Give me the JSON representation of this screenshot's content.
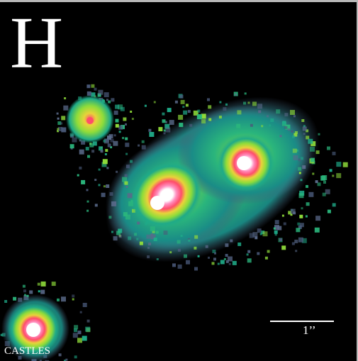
{
  "image": {
    "filter_label": "H",
    "scale_bar_label": "1’’",
    "credit": "CASTLES",
    "colors": {
      "background": "#000000",
      "halo": "#4a5a7a",
      "outer": "#1faa88",
      "mid": "#8fdc3a",
      "warm": "#e8d33a",
      "hot": "#ff4d6b",
      "peak": "#ffffff"
    }
  }
}
